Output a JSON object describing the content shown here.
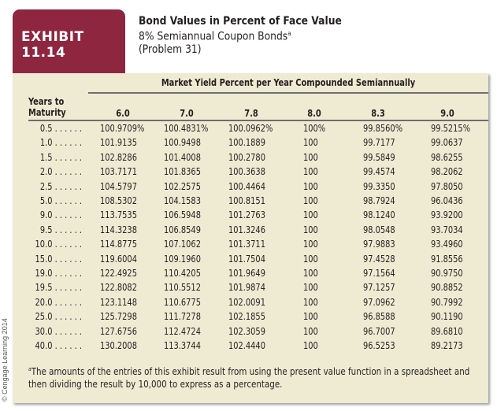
{
  "exhibit_label": "EXHIBIT 11.14",
  "title": {
    "line1": "Bond Values in Percent of Face Value",
    "line2": "8% Semiannual Coupon Bonds",
    "line2_footnote_mark": "a",
    "line3": "(Problem 31)"
  },
  "colors": {
    "tab": "#8e2640",
    "panel": "#efebd3",
    "rule": "#6d6e71"
  },
  "table": {
    "spanner": "Market Yield Percent per Year Compounded Semiannually",
    "row_header": [
      "Years to",
      "Maturity"
    ],
    "columns": [
      "6.0",
      "7.0",
      "7.8",
      "8.0",
      "8.3",
      "9.0"
    ],
    "rows": [
      {
        "years": "0.5 . . . . . .",
        "values": [
          "100.9709%",
          "100.4831%",
          "100.0962%",
          "100%",
          "99.8560%",
          "99.5215%"
        ]
      },
      {
        "years": "1.0 . . . . . .",
        "values": [
          "101.9135",
          "100.9498",
          "100.1889",
          "100",
          "99.7177",
          "99.0637"
        ]
      },
      {
        "years": "1.5 . . . . . .",
        "values": [
          "102.8286",
          "101.4008",
          "100.2780",
          "100",
          "99.5849",
          "98.6255"
        ]
      },
      {
        "years": "2.0 . . . . . .",
        "values": [
          "103.7171",
          "101.8365",
          "100.3638",
          "100",
          "99.4574",
          "98.2062"
        ]
      },
      {
        "years": "2.5 . . . . . .",
        "values": [
          "104.5797",
          "102.2575",
          "100.4464",
          "100",
          "99.3350",
          "97.8050"
        ]
      },
      {
        "years": "5.0 . . . . . .",
        "values": [
          "108.5302",
          "104.1583",
          "100.8151",
          "100",
          "98.7924",
          "96.0436"
        ]
      },
      {
        "years": "9.0 . . . . . .",
        "values": [
          "113.7535",
          "106.5948",
          "101.2763",
          "100",
          "98.1240",
          "93.9200"
        ]
      },
      {
        "years": "9.5 . . . . . .",
        "values": [
          "114.3238",
          "106.8549",
          "101.3246",
          "100",
          "98.0548",
          "93.7034"
        ]
      },
      {
        "years": "10.0 . . . . . .",
        "values": [
          "114.8775",
          "107.1062",
          "101.3711",
          "100",
          "97.9883",
          "93.4960"
        ]
      },
      {
        "years": "15.0 . . . . . .",
        "values": [
          "119.6004",
          "109.1960",
          "101.7504",
          "100",
          "97.4528",
          "91.8556"
        ]
      },
      {
        "years": "19.0 . . . . . .",
        "values": [
          "122.4925",
          "110.4205",
          "101.9649",
          "100",
          "97.1564",
          "90.9750"
        ]
      },
      {
        "years": "19.5 . . . . . .",
        "values": [
          "122.8082",
          "110.5512",
          "101.9874",
          "100",
          "97.1257",
          "90.8852"
        ]
      },
      {
        "years": "20.0 . . . . . .",
        "values": [
          "123.1148",
          "110.6775",
          "102.0091",
          "100",
          "97.0962",
          "90.7992"
        ]
      },
      {
        "years": "25.0 . . . . . .",
        "values": [
          "125.7298",
          "111.7278",
          "102.1855",
          "100",
          "96.8588",
          "90.1190"
        ]
      },
      {
        "years": "30.0 . . . . . .",
        "values": [
          "127.6756",
          "112.4724",
          "102.3059",
          "100",
          "96.7007",
          "89.6810"
        ]
      },
      {
        "years": "40.0 . . . . . .",
        "values": [
          "130.2008",
          "113.3744",
          "102.4440",
          "100",
          "96.5253",
          "89.2173"
        ]
      }
    ]
  },
  "footnote": {
    "mark": "a",
    "line1": "The amounts of the entries of this exhibit result from using the present value function in a spreadsheet and",
    "line2": "then dividing the result by 10,000 to express as a percentage."
  },
  "copyright": "© Cengage Learning 2014"
}
